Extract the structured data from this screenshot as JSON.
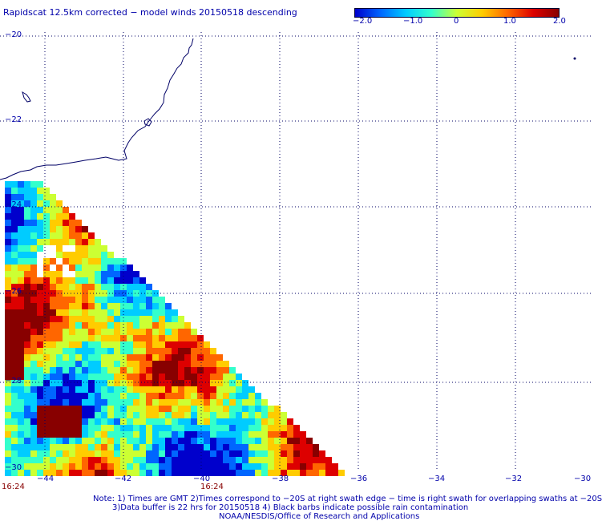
{
  "title": "Rapidscat 12.5km corrected − model winds 20150518 descending",
  "colorbar": {
    "labels": [
      "−2.0",
      "−1.0",
      "0",
      "1.0",
      "2.0"
    ],
    "min": -2.0,
    "max": 2.0,
    "colors": [
      "#0000cc",
      "#0066ff",
      "#00ccff",
      "#33ffcc",
      "#ccff33",
      "#ffcc00",
      "#ff6600",
      "#dd0000",
      "#880000"
    ]
  },
  "lat_labels": [
    "−20",
    "−22",
    "−24",
    "−26",
    "−28",
    "−30"
  ],
  "lon_labels": [
    "−44",
    "−42",
    "−40",
    "−38",
    "−36",
    "−34",
    "−32",
    "−30"
  ],
  "time_labels": [
    "16:24",
    "16:24"
  ],
  "notes": [
    "Note: 1) Times are GMT 2)Times correspond to −20S at right swath edge − time is right swath for overlapping swaths at −20S",
    "3)Data buffer is 22 hrs for 20150518 4) Black barbs indicate possible rain contamination",
    "NOAA/NESDIS/Office of Research and Applications"
  ],
  "colors": {
    "text": "#0000aa",
    "time_text": "#880000",
    "grid": "#000066",
    "coast": "#000066"
  }
}
